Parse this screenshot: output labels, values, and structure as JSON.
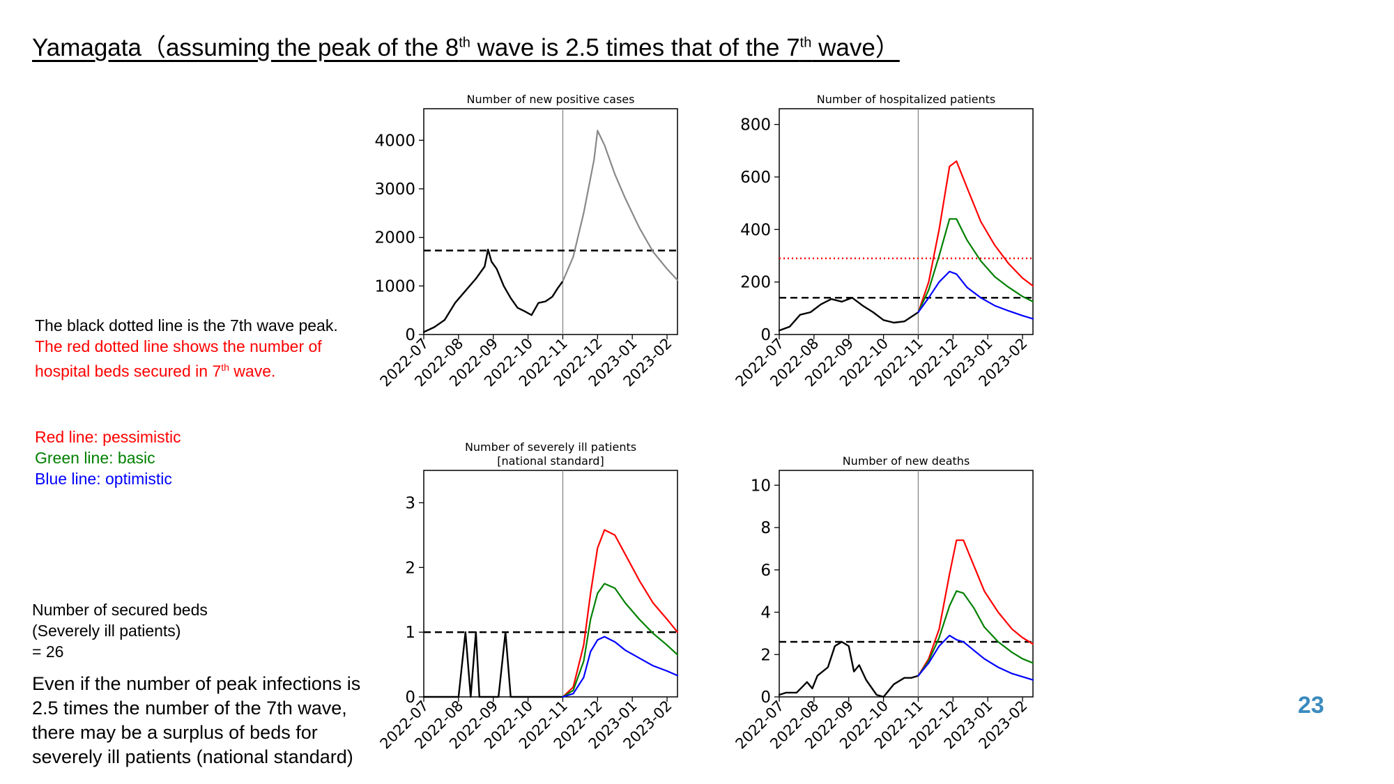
{
  "page": {
    "title_parts": [
      "Yamagata（assuming the peak of the 8",
      "th",
      " wave is 2.5 times that of the 7",
      "th",
      " wave）"
    ],
    "page_number": "23",
    "colors": {
      "pessimistic": "#ff0000",
      "basic": "#008000",
      "optimistic": "#0000ff",
      "observed": "#000000",
      "projection": "#888888",
      "page_number": "#3b8bbf"
    }
  },
  "notes": {
    "black_line": "The black dotted line is the 7th wave peak.",
    "red_line_1": "The red dotted line shows the number of",
    "red_line_2a": "hospital beds secured in 7",
    "red_line_2sup": "th",
    "red_line_2b": " wave.",
    "legend_red": "Red line: pessimistic",
    "legend_green": "Green line: basic",
    "legend_blue": "Blue line: optimistic"
  },
  "beds_note": {
    "line1": "Number of secured beds",
    "line2": "(Severely ill patients)",
    "line3": "= 26"
  },
  "conclusion": [
    "Even if the number of peak infections is",
    "2.5 times the number of the 7th wave,",
    "there may be a surplus of beds for",
    "severely ill patients (national standard)"
  ],
  "chart_data": [
    {
      "type": "line",
      "title": [
        "Number of new positive cases"
      ],
      "xlabel": "",
      "ylabel": "",
      "x_range": [
        0,
        7.3
      ],
      "ylim": [
        0,
        4650
      ],
      "yticks": [
        0,
        1000,
        2000,
        3000,
        4000
      ],
      "ytick_labels": [
        "0",
        "1000",
        "2000",
        "3000",
        "4000"
      ],
      "xticks": [
        0.97,
        1.97,
        2.97,
        3.97,
        4.97,
        5.97,
        6.97
      ],
      "xtick_labels": [
        "2022-07",
        "2022-08",
        "2022-09",
        "2022-10",
        "2022-11",
        "2022-12",
        "2023-01",
        "2023-02"
      ],
      "xtick_values": [
        0,
        1,
        2,
        3,
        4,
        5,
        6,
        7
      ],
      "forecast_start": 4.0,
      "hlines": [
        {
          "y": 1730,
          "style": "dashed",
          "color": "#000000",
          "label": "7th wave peak"
        }
      ],
      "series": [
        {
          "role": "observed",
          "color": "#000000",
          "x": [
            0,
            0.3,
            0.6,
            0.9,
            1.2,
            1.5,
            1.75,
            1.85,
            1.95,
            2.1,
            2.3,
            2.5,
            2.7,
            2.9,
            3.1,
            3.3,
            3.5,
            3.7,
            3.85,
            4.0
          ],
          "y": [
            50,
            150,
            300,
            650,
            900,
            1150,
            1400,
            1750,
            1500,
            1350,
            1000,
            750,
            550,
            480,
            400,
            650,
            680,
            780,
            950,
            1100
          ]
        },
        {
          "role": "projection",
          "color": "#888888",
          "x": [
            4.0,
            4.3,
            4.6,
            4.9,
            5.0,
            5.2,
            5.5,
            5.8,
            6.2,
            6.6,
            7.0,
            7.3
          ],
          "y": [
            1100,
            1600,
            2500,
            3600,
            4200,
            3900,
            3300,
            2800,
            2200,
            1700,
            1350,
            1120
          ]
        }
      ]
    },
    {
      "type": "line",
      "title": [
        "Number of hospitalized patients"
      ],
      "xlabel": "",
      "ylabel": "",
      "x_range": [
        0,
        7.3
      ],
      "ylim": [
        0,
        860
      ],
      "yticks": [
        0,
        200,
        400,
        600,
        800
      ],
      "ytick_labels": [
        "0",
        "200",
        "400",
        "600",
        "800"
      ],
      "xtick_labels": [
        "2022-07",
        "2022-08",
        "2022-09",
        "2022-10",
        "2022-11",
        "2022-12",
        "2023-01",
        "2023-02"
      ],
      "xtick_values": [
        0,
        1,
        2,
        3,
        4,
        5,
        6,
        7
      ],
      "forecast_start": 4.0,
      "hlines": [
        {
          "y": 140,
          "style": "dashed",
          "color": "#000000",
          "label": "7th wave peak"
        },
        {
          "y": 290,
          "style": "dotted",
          "color": "#ff0000",
          "label": "secured beds in 7th wave"
        }
      ],
      "series": [
        {
          "role": "observed",
          "color": "#000000",
          "x": [
            0,
            0.3,
            0.6,
            0.9,
            1.2,
            1.5,
            1.8,
            2.1,
            2.4,
            2.7,
            3.0,
            3.3,
            3.6,
            4.0
          ],
          "y": [
            15,
            30,
            75,
            85,
            115,
            135,
            125,
            140,
            110,
            85,
            55,
            45,
            50,
            85
          ]
        },
        {
          "role": "pessimistic",
          "color": "#ff0000",
          "x": [
            4.0,
            4.3,
            4.6,
            4.9,
            5.1,
            5.4,
            5.8,
            6.2,
            6.6,
            7.0,
            7.3
          ],
          "y": [
            85,
            200,
            400,
            640,
            660,
            560,
            430,
            340,
            270,
            215,
            185
          ]
        },
        {
          "role": "basic",
          "color": "#008000",
          "x": [
            4.0,
            4.3,
            4.6,
            4.9,
            5.1,
            5.4,
            5.8,
            6.2,
            6.6,
            7.0,
            7.3
          ],
          "y": [
            85,
            170,
            300,
            440,
            440,
            360,
            280,
            220,
            180,
            145,
            125
          ]
        },
        {
          "role": "optimistic",
          "color": "#0000ff",
          "x": [
            4.0,
            4.3,
            4.6,
            4.9,
            5.1,
            5.4,
            5.8,
            6.2,
            6.6,
            7.0,
            7.3
          ],
          "y": [
            85,
            140,
            200,
            240,
            230,
            180,
            140,
            110,
            90,
            72,
            60
          ]
        }
      ]
    },
    {
      "type": "line",
      "title": [
        "Number of severely ill patients",
        "[national standard]"
      ],
      "xlabel": "",
      "ylabel": "",
      "x_range": [
        0,
        7.3
      ],
      "ylim": [
        0,
        3.5
      ],
      "yticks": [
        0,
        1,
        2,
        3
      ],
      "ytick_labels": [
        "0",
        "1",
        "2",
        "3"
      ],
      "xtick_labels": [
        "2022-07",
        "2022-08",
        "2022-09",
        "2022-10",
        "2022-11",
        "2022-12",
        "2023-01",
        "2023-02"
      ],
      "xtick_values": [
        0,
        1,
        2,
        3,
        4,
        5,
        6,
        7
      ],
      "forecast_start": 4.0,
      "hlines": [
        {
          "y": 1,
          "style": "dashed",
          "color": "#000000",
          "label": "7th wave peak"
        }
      ],
      "series": [
        {
          "role": "observed",
          "color": "#000000",
          "x": [
            0,
            1.0,
            1.2,
            1.35,
            1.5,
            1.6,
            1.75,
            1.95,
            2.15,
            2.35,
            2.5,
            2.7,
            3.0,
            3.5,
            4.0
          ],
          "y": [
            0,
            0,
            1,
            0,
            1,
            0,
            0,
            0,
            0,
            1,
            0,
            0,
            0,
            0,
            0
          ]
        },
        {
          "role": "pessimistic",
          "color": "#ff0000",
          "x": [
            4.0,
            4.3,
            4.6,
            4.8,
            5.0,
            5.2,
            5.5,
            5.8,
            6.2,
            6.6,
            7.0,
            7.3
          ],
          "y": [
            0,
            0.15,
            0.8,
            1.6,
            2.3,
            2.58,
            2.5,
            2.2,
            1.8,
            1.45,
            1.2,
            1.0
          ]
        },
        {
          "role": "basic",
          "color": "#008000",
          "x": [
            4.0,
            4.3,
            4.6,
            4.8,
            5.0,
            5.2,
            5.5,
            5.8,
            6.2,
            6.6,
            7.0,
            7.3
          ],
          "y": [
            0,
            0.1,
            0.55,
            1.2,
            1.6,
            1.75,
            1.68,
            1.45,
            1.2,
            0.98,
            0.8,
            0.65
          ]
        },
        {
          "role": "optimistic",
          "color": "#0000ff",
          "x": [
            4.0,
            4.3,
            4.6,
            4.8,
            5.0,
            5.2,
            5.5,
            5.8,
            6.2,
            6.6,
            7.0,
            7.3
          ],
          "y": [
            0,
            0.05,
            0.3,
            0.7,
            0.88,
            0.93,
            0.85,
            0.72,
            0.6,
            0.48,
            0.4,
            0.33
          ]
        }
      ]
    },
    {
      "type": "line",
      "title": [
        "Number of new deaths"
      ],
      "xlabel": "",
      "ylabel": "",
      "x_range": [
        0,
        7.3
      ],
      "ylim": [
        0,
        10.7
      ],
      "yticks": [
        0,
        2,
        4,
        6,
        8,
        10
      ],
      "ytick_labels": [
        "0",
        "2",
        "4",
        "6",
        "8",
        "10"
      ],
      "xtick_labels": [
        "2022-07",
        "2022-08",
        "2022-09",
        "2022-10",
        "2022-11",
        "2022-12",
        "2023-01",
        "2023-02"
      ],
      "xtick_values": [
        0,
        1,
        2,
        3,
        4,
        5,
        6,
        7
      ],
      "forecast_start": 4.0,
      "hlines": [
        {
          "y": 2.6,
          "style": "dashed",
          "color": "#000000",
          "label": "7th wave peak"
        }
      ],
      "series": [
        {
          "role": "observed",
          "color": "#000000",
          "x": [
            0,
            0.2,
            0.5,
            0.8,
            0.95,
            1.1,
            1.4,
            1.6,
            1.8,
            2.0,
            2.15,
            2.3,
            2.5,
            2.8,
            3.0,
            3.3,
            3.6,
            3.8,
            4.0
          ],
          "y": [
            0.1,
            0.2,
            0.2,
            0.7,
            0.4,
            1.0,
            1.4,
            2.4,
            2.6,
            2.4,
            1.2,
            1.5,
            0.8,
            0.1,
            0.0,
            0.6,
            0.9,
            0.9,
            1.0
          ]
        },
        {
          "role": "pessimistic",
          "color": "#ff0000",
          "x": [
            4.0,
            4.3,
            4.6,
            4.9,
            5.1,
            5.3,
            5.6,
            5.9,
            6.3,
            6.7,
            7.0,
            7.3
          ],
          "y": [
            1.0,
            1.8,
            3.2,
            5.8,
            7.4,
            7.4,
            6.2,
            5.0,
            4.0,
            3.2,
            2.8,
            2.5
          ]
        },
        {
          "role": "basic",
          "color": "#008000",
          "x": [
            4.0,
            4.3,
            4.6,
            4.9,
            5.1,
            5.3,
            5.6,
            5.9,
            6.3,
            6.7,
            7.0,
            7.3
          ],
          "y": [
            1.0,
            1.7,
            2.8,
            4.3,
            5.0,
            4.9,
            4.2,
            3.3,
            2.6,
            2.1,
            1.8,
            1.6
          ]
        },
        {
          "role": "optimistic",
          "color": "#0000ff",
          "x": [
            4.0,
            4.3,
            4.6,
            4.9,
            5.1,
            5.3,
            5.6,
            5.9,
            6.3,
            6.7,
            7.0,
            7.3
          ],
          "y": [
            1.0,
            1.6,
            2.4,
            2.9,
            2.7,
            2.6,
            2.2,
            1.8,
            1.4,
            1.1,
            0.95,
            0.8
          ]
        }
      ]
    }
  ]
}
